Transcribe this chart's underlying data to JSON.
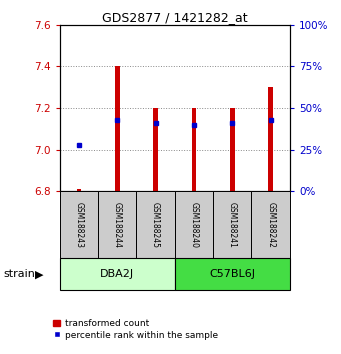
{
  "title": "GDS2877 / 1421282_at",
  "samples": [
    "GSM188243",
    "GSM188244",
    "GSM188245",
    "GSM188240",
    "GSM188241",
    "GSM188242"
  ],
  "bar_bottom": 6.8,
  "bar_values": [
    6.81,
    7.4,
    7.2,
    7.2,
    7.2,
    7.3
  ],
  "percentile_values": [
    7.02,
    7.14,
    7.13,
    7.12,
    7.13,
    7.14
  ],
  "ylim": [
    6.8,
    7.6
  ],
  "yticks_left": [
    6.8,
    7.0,
    7.2,
    7.4,
    7.6
  ],
  "yticks_right": [
    0,
    25,
    50,
    75,
    100
  ],
  "bar_color": "#cc0000",
  "percentile_color": "#0000cc",
  "left_axis_color": "#cc0000",
  "right_axis_color": "#0000cc",
  "grid_color": "#888888",
  "group_label_dba": "DBA2J",
  "group_label_c57": "C57BL6J",
  "dba_color": "#ccffcc",
  "c57_color": "#44dd44",
  "sample_bg_color": "#cccccc",
  "legend_bar_label": "transformed count",
  "legend_pct_label": "percentile rank within the sample",
  "strain_label": "strain"
}
